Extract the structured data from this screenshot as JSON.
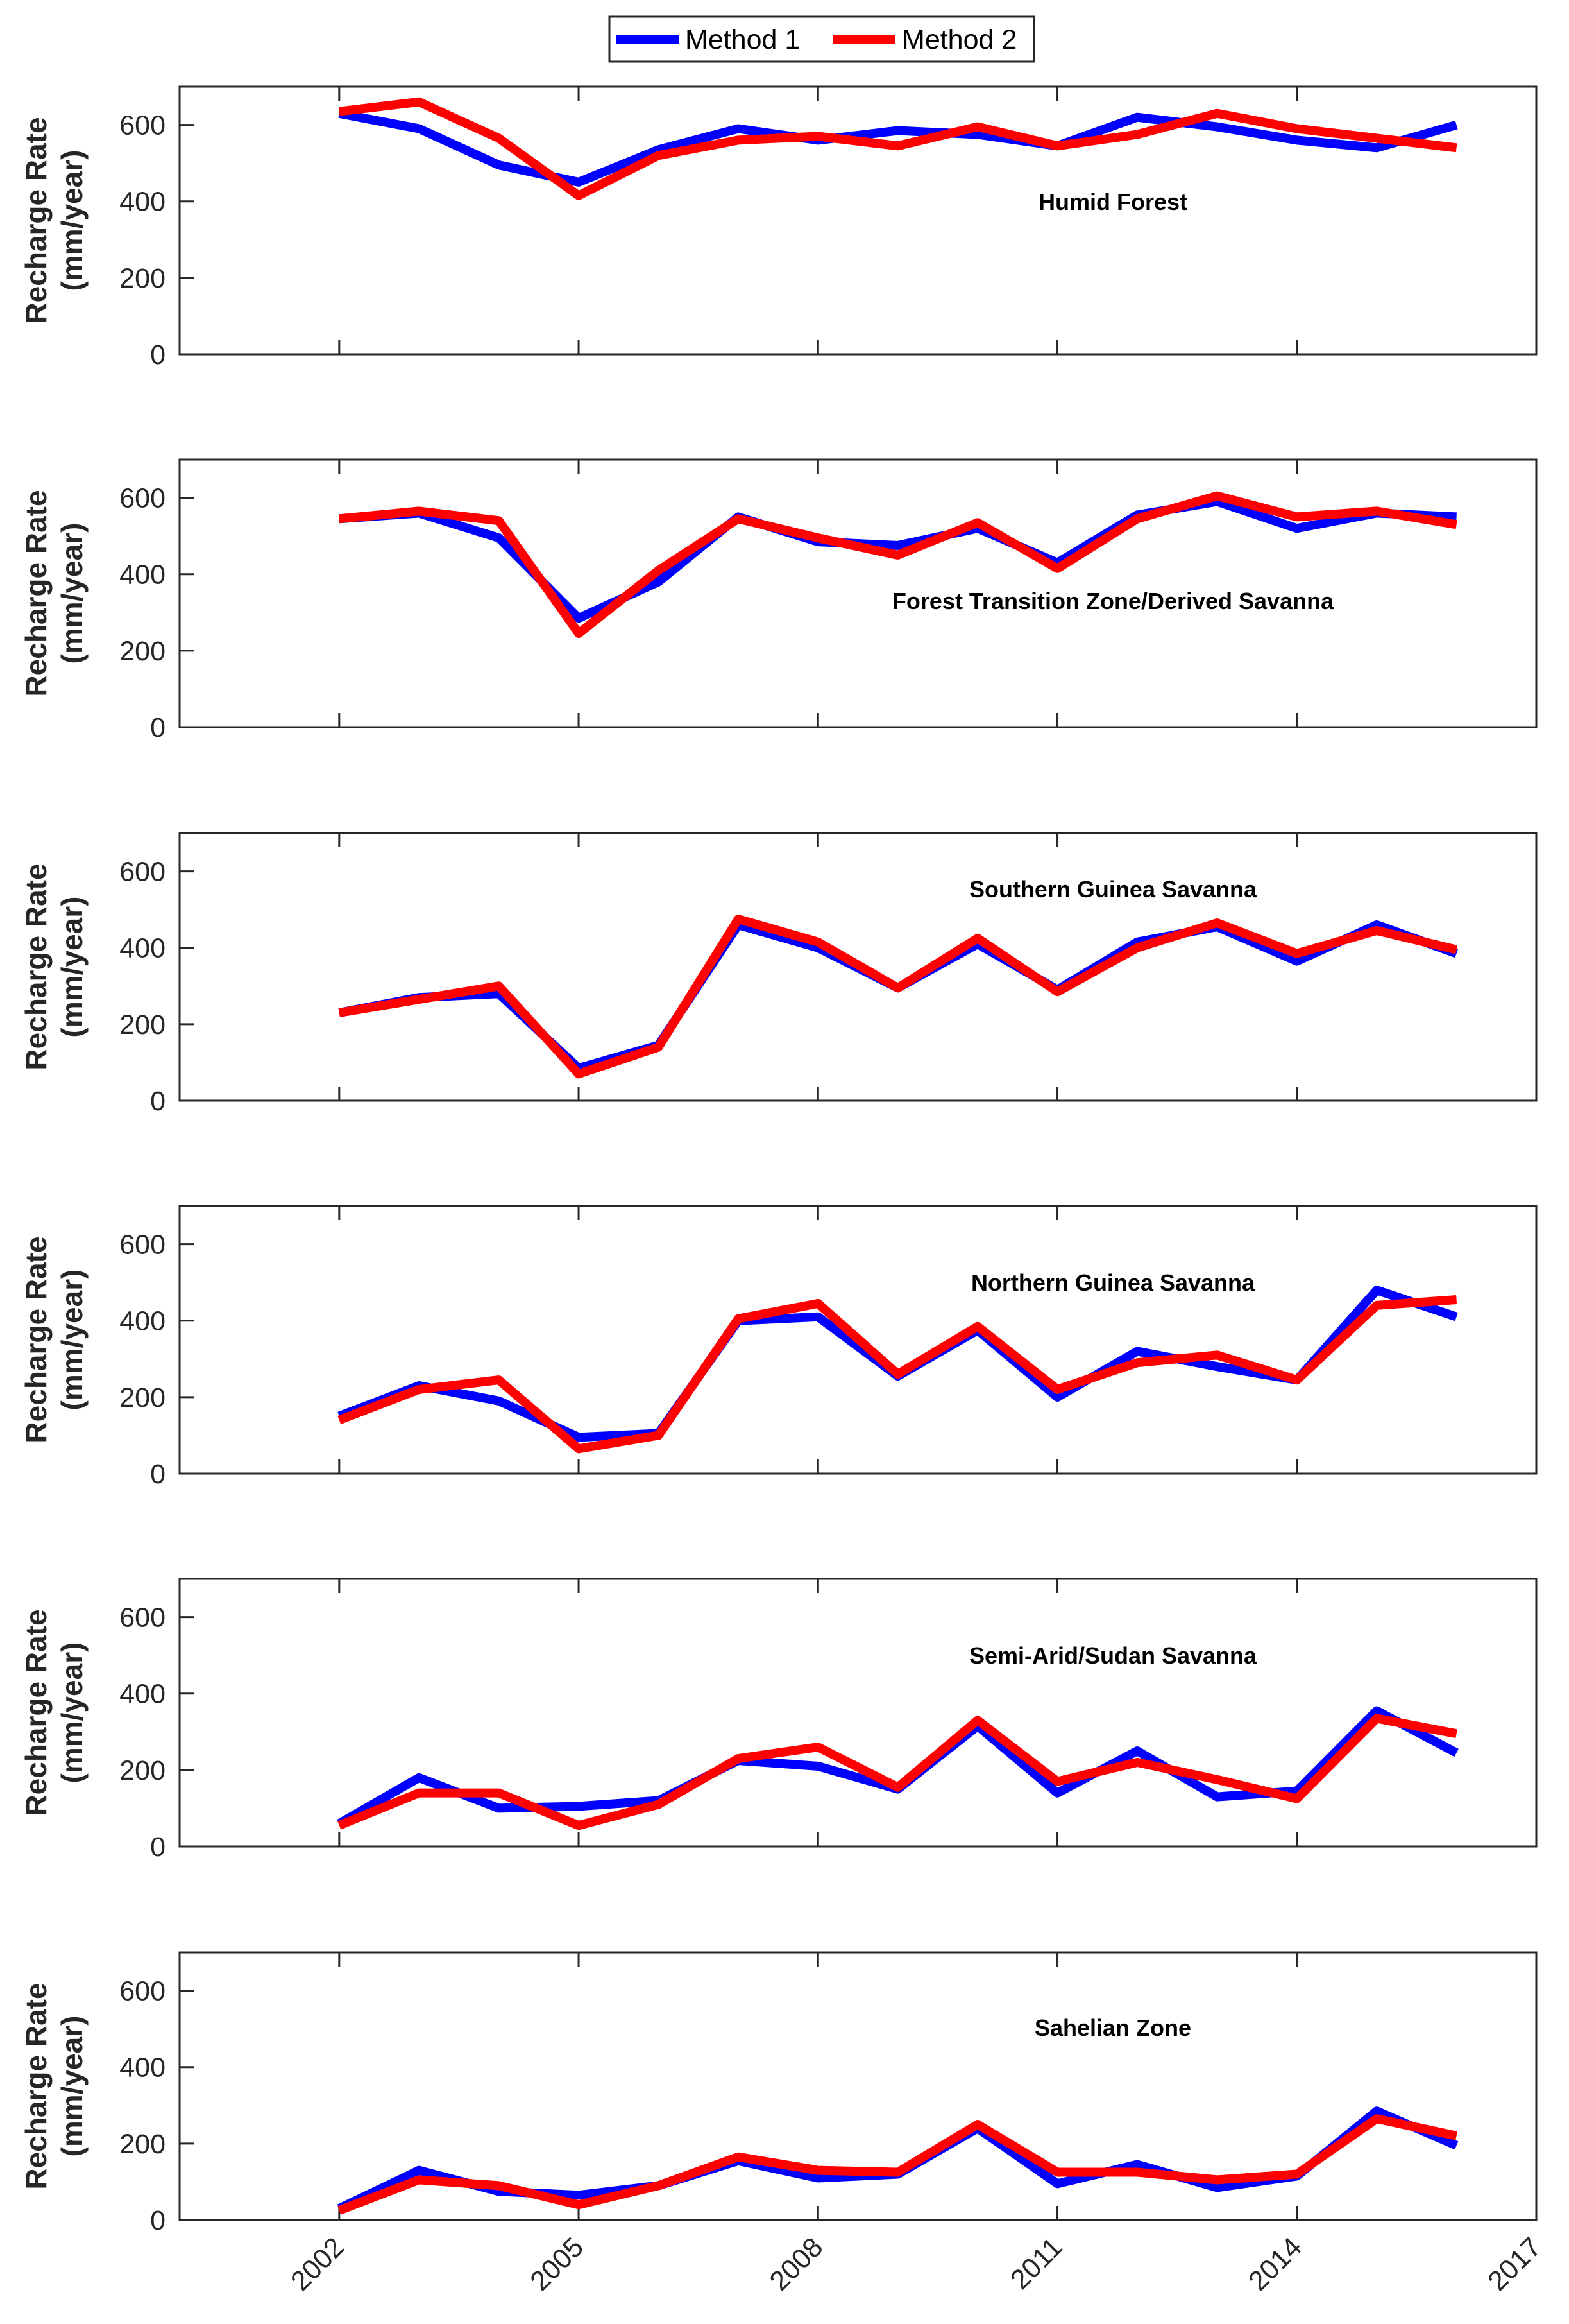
{
  "legend": {
    "entries": [
      {
        "name": "Method 1",
        "color": "#0000ff"
      },
      {
        "name": "Method 2",
        "color": "#ff0000"
      }
    ]
  },
  "chart_data": [
    {
      "type": "line",
      "title": "Humid Forest",
      "ylabel": [
        "Recharge Rate",
        "(mm/year)"
      ],
      "ylim": [
        0,
        700
      ],
      "yticks": [
        0,
        200,
        400,
        600
      ],
      "xlim": [
        2000.0,
        2017
      ],
      "xticks": [
        2002,
        2005,
        2008,
        2011,
        2014,
        2017
      ],
      "x": [
        2002,
        2003,
        2004,
        2005,
        2006,
        2007,
        2008,
        2009,
        2010,
        2011,
        2012,
        2013,
        2014,
        2015,
        2016
      ],
      "series": [
        {
          "name": "Method 1",
          "values": [
            630,
            590,
            495,
            450,
            535,
            590,
            560,
            585,
            575,
            545,
            620,
            595,
            560,
            540,
            600
          ]
        },
        {
          "name": "Method 2",
          "values": [
            635,
            660,
            565,
            415,
            520,
            560,
            570,
            545,
            595,
            545,
            575,
            630,
            590,
            565,
            540
          ]
        }
      ]
    },
    {
      "type": "line",
      "title": "Forest Transition Zone/Derived Savanna",
      "ylabel": [
        "Recharge Rate",
        "(mm/year)"
      ],
      "ylim": [
        0,
        700
      ],
      "yticks": [
        0,
        200,
        400,
        600
      ],
      "xlim": [
        2000.0,
        2017
      ],
      "xticks": [
        2002,
        2005,
        2008,
        2011,
        2014,
        2017
      ],
      "x": [
        2002,
        2003,
        2004,
        2005,
        2006,
        2007,
        2008,
        2009,
        2010,
        2011,
        2012,
        2013,
        2014,
        2015,
        2016
      ],
      "series": [
        {
          "name": "Method 1",
          "values": [
            545,
            560,
            495,
            285,
            380,
            550,
            485,
            475,
            520,
            430,
            555,
            590,
            520,
            560,
            550
          ]
        },
        {
          "name": "Method 2",
          "values": [
            545,
            565,
            540,
            245,
            410,
            545,
            495,
            450,
            535,
            415,
            545,
            605,
            550,
            565,
            530
          ]
        }
      ]
    },
    {
      "type": "line",
      "title": "Southern Guinea Savanna",
      "ylabel": [
        "Recharge Rate",
        "(mm/year)"
      ],
      "ylim": [
        0,
        700
      ],
      "yticks": [
        0,
        200,
        400,
        600
      ],
      "xlim": [
        2000.0,
        2017
      ],
      "xticks": [
        2002,
        2005,
        2008,
        2011,
        2014,
        2017
      ],
      "x": [
        2002,
        2003,
        2004,
        2005,
        2006,
        2007,
        2008,
        2009,
        2010,
        2011,
        2012,
        2013,
        2014,
        2015,
        2016
      ],
      "series": [
        {
          "name": "Method 1",
          "values": [
            230,
            270,
            280,
            85,
            145,
            460,
            400,
            295,
            410,
            290,
            415,
            455,
            365,
            460,
            385
          ]
        },
        {
          "name": "Method 2",
          "values": [
            230,
            265,
            300,
            70,
            140,
            475,
            415,
            295,
            425,
            285,
            400,
            465,
            385,
            445,
            395
          ]
        }
      ]
    },
    {
      "type": "line",
      "title": "Northern Guinea Savanna",
      "ylabel": [
        "Recharge Rate",
        "(mm/year)"
      ],
      "ylim": [
        0,
        700
      ],
      "yticks": [
        0,
        200,
        400,
        600
      ],
      "xlim": [
        2000.0,
        2017
      ],
      "xticks": [
        2002,
        2005,
        2008,
        2011,
        2014,
        2017
      ],
      "x": [
        2002,
        2003,
        2004,
        2005,
        2006,
        2007,
        2008,
        2009,
        2010,
        2011,
        2012,
        2013,
        2014,
        2015,
        2016
      ],
      "series": [
        {
          "name": "Method 1",
          "values": [
            150,
            230,
            190,
            95,
            105,
            400,
            410,
            255,
            375,
            200,
            320,
            280,
            245,
            480,
            410
          ]
        },
        {
          "name": "Method 2",
          "values": [
            140,
            220,
            245,
            65,
            100,
            405,
            445,
            260,
            385,
            220,
            290,
            310,
            245,
            440,
            455
          ]
        }
      ]
    },
    {
      "type": "line",
      "title": "Semi-Arid/Sudan Savanna",
      "ylabel": [
        "Recharge Rate",
        "(mm/year)"
      ],
      "ylim": [
        0,
        700
      ],
      "yticks": [
        0,
        200,
        400,
        600
      ],
      "xlim": [
        2000.0,
        2017
      ],
      "xticks": [
        2002,
        2005,
        2008,
        2011,
        2014,
        2017
      ],
      "x": [
        2002,
        2003,
        2004,
        2005,
        2006,
        2007,
        2008,
        2009,
        2010,
        2011,
        2012,
        2013,
        2014,
        2015,
        2016
      ],
      "series": [
        {
          "name": "Method 1",
          "values": [
            60,
            180,
            100,
            105,
            120,
            225,
            210,
            150,
            315,
            140,
            250,
            130,
            145,
            355,
            245
          ]
        },
        {
          "name": "Method 2",
          "values": [
            55,
            140,
            140,
            55,
            110,
            230,
            260,
            155,
            330,
            170,
            220,
            175,
            125,
            335,
            295
          ]
        }
      ]
    },
    {
      "type": "line",
      "title": "Sahelian Zone",
      "ylabel": [
        "Recharge Rate",
        "(mm/year)"
      ],
      "ylim": [
        0,
        700
      ],
      "yticks": [
        0,
        200,
        400,
        600
      ],
      "xlim": [
        2000.0,
        2017
      ],
      "xticks": [
        2002,
        2005,
        2008,
        2011,
        2014,
        2017
      ],
      "x": [
        2002,
        2003,
        2004,
        2005,
        2006,
        2007,
        2008,
        2009,
        2010,
        2011,
        2012,
        2013,
        2014,
        2015,
        2016
      ],
      "series": [
        {
          "name": "Method 1",
          "values": [
            30,
            130,
            75,
            65,
            90,
            155,
            110,
            120,
            240,
            95,
            145,
            85,
            115,
            285,
            195
          ]
        },
        {
          "name": "Method 2",
          "values": [
            25,
            105,
            90,
            40,
            90,
            165,
            130,
            125,
            250,
            125,
            125,
            105,
            120,
            265,
            220
          ]
        }
      ]
    }
  ]
}
